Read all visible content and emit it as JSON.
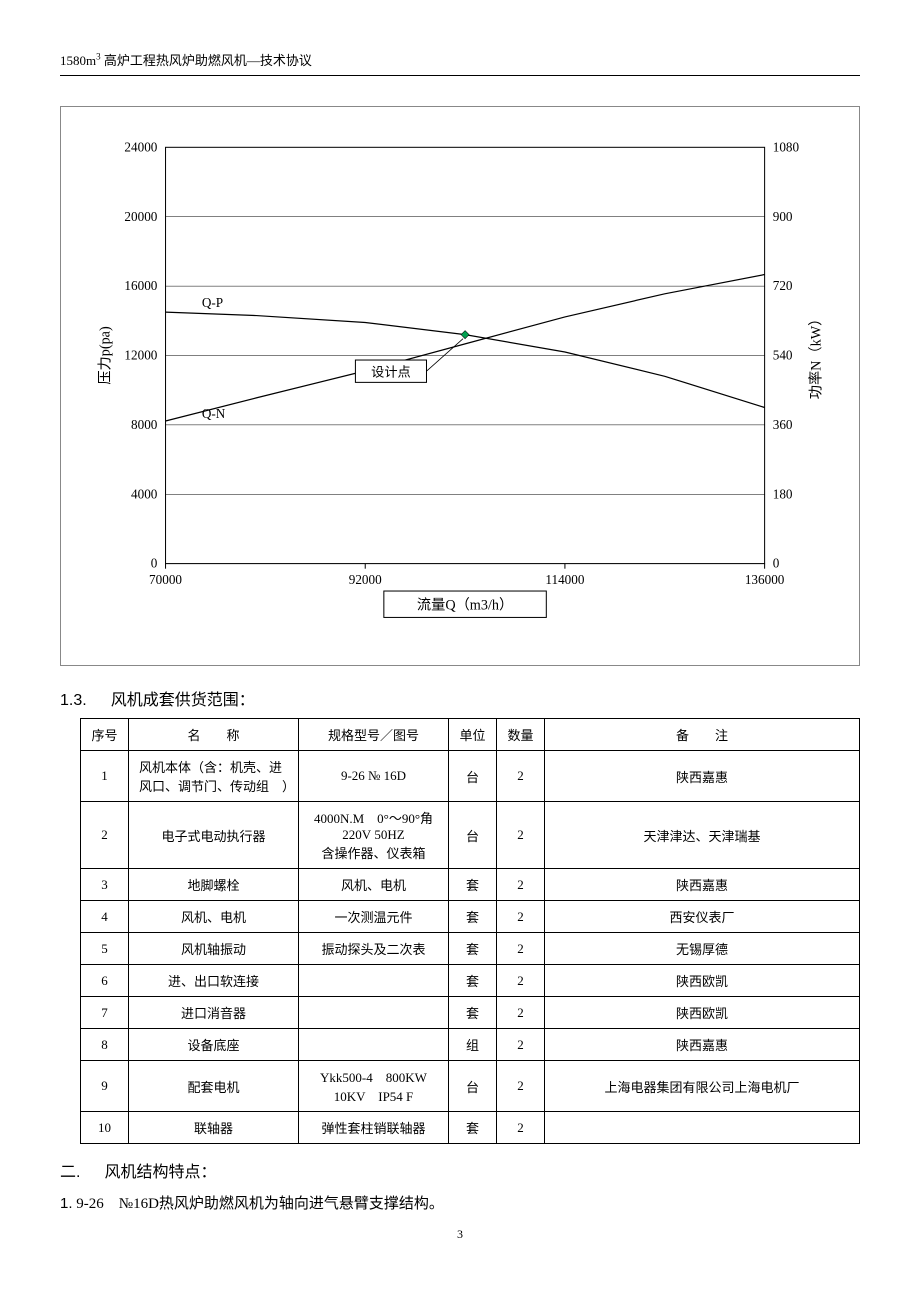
{
  "header": {
    "text_before_sup": "1580m",
    "sup": "3",
    "text_after_sup": " 高炉工程热风炉助燃风机—技术协议"
  },
  "chart": {
    "type": "line",
    "background_color": "#ffffff",
    "border_color": "#888888",
    "grid_color": "#000000",
    "axis_color": "#000000",
    "font_family": "SimSun",
    "tick_fontsize": 13,
    "label_fontsize": 14,
    "x": {
      "label": "流量Q（m3/h）",
      "lim": [
        70000,
        136000
      ],
      "ticks": [
        70000,
        92000,
        114000,
        136000
      ]
    },
    "y_left": {
      "label": "压力p(pa)",
      "lim": [
        0,
        24000
      ],
      "ticks": [
        0,
        4000,
        8000,
        12000,
        16000,
        20000,
        24000
      ]
    },
    "y_right": {
      "label": "功率N（kW）",
      "lim": [
        0,
        1080
      ],
      "ticks": [
        0,
        180,
        360,
        540,
        720,
        900,
        1080
      ]
    },
    "series": [
      {
        "name": "Q-P",
        "label": "Q-P",
        "color": "#000000",
        "line_width": 1.2,
        "points_x": [
          70000,
          80000,
          92000,
          103000,
          114000,
          125000,
          136000
        ],
        "points_y": [
          14500,
          14300,
          13900,
          13200,
          12200,
          10800,
          9000
        ],
        "axis": "left"
      },
      {
        "name": "Q-N",
        "label": "Q-N",
        "color": "#000000",
        "line_width": 1.2,
        "points_x": [
          70000,
          80000,
          92000,
          103000,
          114000,
          125000,
          136000
        ],
        "points_y": [
          370,
          430,
          500,
          570,
          640,
          700,
          750
        ],
        "axis": "right"
      }
    ],
    "design_point": {
      "label": "设计点",
      "x": 103000,
      "y_left": 13200,
      "marker": "diamond",
      "marker_color": "#00a050",
      "marker_size": 8
    },
    "annotations": [
      {
        "text": "Q-P",
        "x": 74000,
        "y_left": 14800
      },
      {
        "text": "Q-N",
        "x": 74000,
        "y_left": 8400
      }
    ],
    "xlabel_box_border": "#000000"
  },
  "section_1_3": {
    "number": "1.3.",
    "title": "风机成套供货范围："
  },
  "table": {
    "columns": [
      "序号",
      "名　　称",
      "规格型号／图号",
      "单位",
      "数量",
      "备　　注"
    ],
    "rows": [
      [
        "1",
        "风机本体（含：机壳、进风口、调节门、传动组　）",
        "9-26 № 16D",
        "台",
        "2",
        "陕西嘉惠"
      ],
      [
        "2",
        "电子式电动执行器",
        "4000N.M　0°～90°角　220V 50HZ\n含操作器、仪表箱",
        "台",
        "2",
        "天津津达、天津瑞基"
      ],
      [
        "3",
        "地脚螺栓",
        "风机、电机",
        "套",
        "2",
        "陕西嘉惠"
      ],
      [
        "4",
        "风机、电机",
        "一次测温元件",
        "套",
        "2",
        "西安仪表厂"
      ],
      [
        "5",
        "风机轴振动",
        "振动探头及二次表",
        "套",
        "2",
        "无锡厚德"
      ],
      [
        "6",
        "进、出口软连接",
        "",
        "套",
        "2",
        "陕西欧凯"
      ],
      [
        "7",
        "进口消音器",
        "",
        "套",
        "2",
        "陕西欧凯"
      ],
      [
        "8",
        "设备底座",
        "",
        "组",
        "2",
        "陕西嘉惠"
      ],
      [
        "9",
        "配套电机",
        "Ykk500-4　800KW\n10KV　IP54 F",
        "台",
        "2",
        "上海电器集团有限公司上海电机厂"
      ],
      [
        "10",
        "联轴器",
        "弹性套柱销联轴器",
        "套",
        "2",
        ""
      ]
    ],
    "name_left_align_rows": [
      0
    ]
  },
  "section_2": {
    "number": "二.",
    "title": "风机结构特点："
  },
  "body_line_1": {
    "number": "1.",
    "text": "9-26　№16D热风炉助燃风机为轴向进气悬臂支撑结构。"
  },
  "footer": {
    "page_number": "3"
  }
}
